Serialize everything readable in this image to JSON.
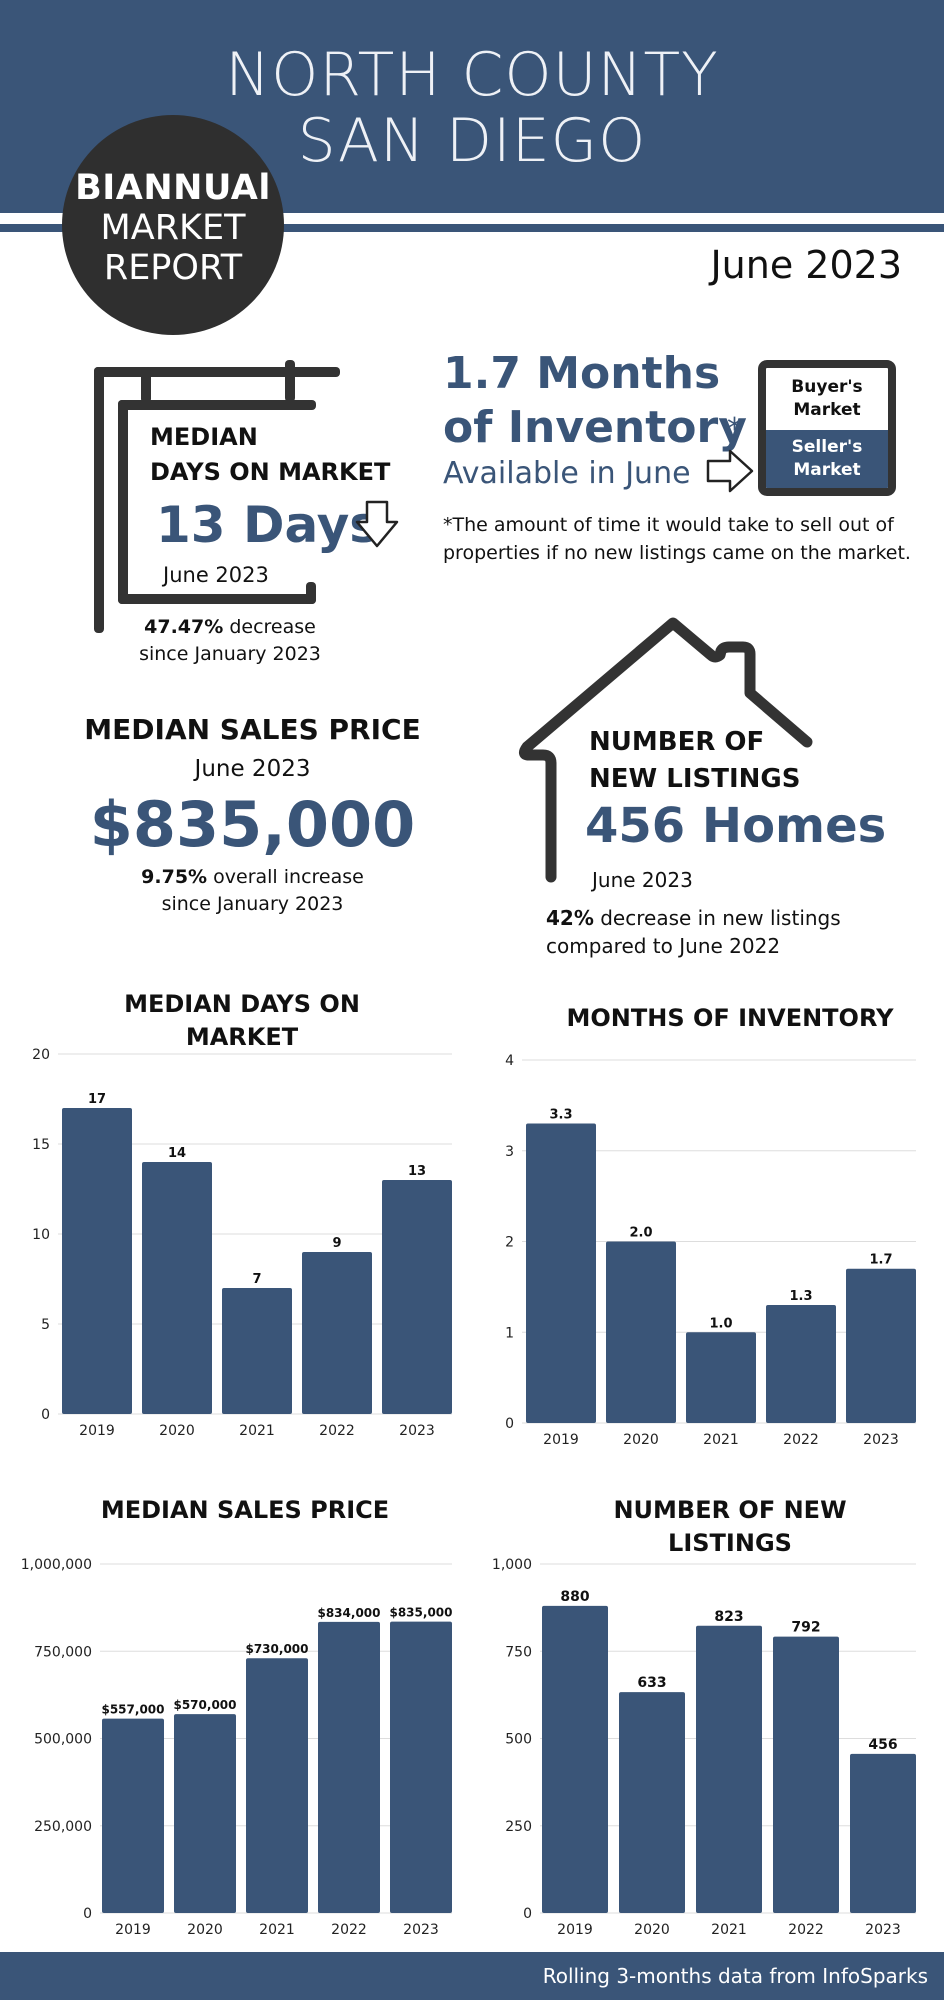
{
  "header": {
    "title_line1": "NORTH COUNTY",
    "title_line2": "SAN DIEGO",
    "badge_line1": "BIANNUAl",
    "badge_line2": "MARKET",
    "badge_line3": "REPORT",
    "date": "June 2023"
  },
  "days_on_market": {
    "title_line1": "MEDIAN",
    "title_line2": "DAYS ON MARKET",
    "value": "13 Days",
    "date": "June 2023",
    "change_pct": "47.47%",
    "change_text": " decrease",
    "change_since": "since January 2023",
    "arrow_icon": "down-arrow-icon"
  },
  "months_of_inventory": {
    "line1": "1.7 Months",
    "line2": "of Inventory",
    "asterisk": "*",
    "line3": "Available in June",
    "note": "*The amount of time it would take to sell out of properties if no new listings came on the market.",
    "sign_buyer_line1": "Buyer's",
    "sign_buyer_line2": "Market",
    "sign_seller_line1": "Seller's",
    "sign_seller_line2": "Market"
  },
  "median_sales_price": {
    "title": "MEDIAN SALES PRICE",
    "date": "June 2023",
    "value": "$835,000",
    "change_pct": "9.75%",
    "change_text": " overall  increase",
    "change_since": "since January 2023"
  },
  "new_listings": {
    "title_line1": "NUMBER OF",
    "title_line2": "NEW LISTINGS",
    "value": "456 Homes",
    "date": "June 2023",
    "change_pct": "42%",
    "change_text": " decrease in new listings",
    "change_line2": "compared to June 2022"
  },
  "colors": {
    "primary": "#3a5578",
    "dark": "#333333",
    "grid": "#dddddd"
  },
  "chart_data": [
    {
      "id": "dom",
      "type": "bar",
      "title_line1": "MEDIAN DAYS ON",
      "title_line2": "MARKET",
      "categories": [
        "2019",
        "2020",
        "2021",
        "2022",
        "2023"
      ],
      "values": [
        17,
        14,
        7,
        9,
        13
      ],
      "value_labels": [
        "17",
        "14",
        "7",
        "9",
        "13"
      ],
      "ylim": [
        0,
        20
      ],
      "yticks": [
        0,
        5,
        10,
        15,
        20
      ],
      "ytick_labels": [
        "0",
        "5",
        "10",
        "15",
        "20"
      ]
    },
    {
      "id": "moi",
      "type": "bar",
      "title_line1": "MONTHS OF INVENTORY",
      "title_line2": "",
      "categories": [
        "2019",
        "2020",
        "2021",
        "2022",
        "2023"
      ],
      "values": [
        3.3,
        2.0,
        1.0,
        1.3,
        1.7
      ],
      "value_labels": [
        "3.3",
        "2.0",
        "1.0",
        "1.3",
        "1.7"
      ],
      "ylim": [
        0,
        4
      ],
      "yticks": [
        0,
        1,
        2,
        3,
        4
      ],
      "ytick_labels": [
        "0",
        "1",
        "2",
        "3",
        "4"
      ]
    },
    {
      "id": "msp",
      "type": "bar",
      "title_line1": "MEDIAN SALES PRICE",
      "title_line2": "",
      "categories": [
        "2019",
        "2020",
        "2021",
        "2022",
        "2023"
      ],
      "values": [
        557000,
        570000,
        730000,
        834000,
        835000
      ],
      "value_labels": [
        "$557,000",
        "$570,000",
        "$730,000",
        "$834,000",
        "$835,000"
      ],
      "ylim": [
        0,
        1000000
      ],
      "yticks": [
        0,
        250000,
        500000,
        750000,
        1000000
      ],
      "ytick_labels": [
        "0",
        "250,000",
        "500,000",
        "750,000",
        "1,000,000"
      ]
    },
    {
      "id": "nl",
      "type": "bar",
      "title_line1": "NUMBER OF NEW",
      "title_line2": "LISTINGS",
      "categories": [
        "2019",
        "2020",
        "2021",
        "2022",
        "2023"
      ],
      "values": [
        880,
        633,
        823,
        792,
        456
      ],
      "value_labels": [
        "880",
        "633",
        "823",
        "792",
        "456"
      ],
      "ylim": [
        0,
        1000
      ],
      "yticks": [
        0,
        250,
        500,
        750,
        1000
      ],
      "ytick_labels": [
        "0",
        "250",
        "500",
        "750",
        "1,000"
      ]
    }
  ],
  "footer": {
    "text": "Rolling 3-months data from InfoSparks"
  }
}
